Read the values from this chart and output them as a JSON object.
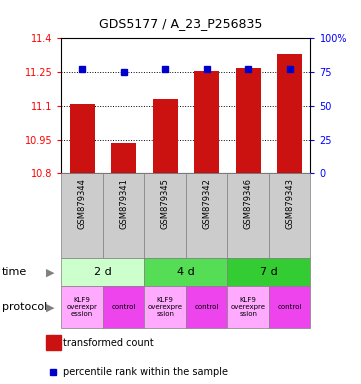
{
  "title": "GDS5177 / A_23_P256835",
  "samples": [
    "GSM879344",
    "GSM879341",
    "GSM879345",
    "GSM879342",
    "GSM879346",
    "GSM879343"
  ],
  "bar_values": [
    11.11,
    10.935,
    11.13,
    11.255,
    11.27,
    11.33
  ],
  "dot_values": [
    77,
    75,
    77,
    77,
    77,
    77
  ],
  "ymin": 10.8,
  "ymax": 11.4,
  "y2min": 0,
  "y2max": 100,
  "yticks": [
    10.8,
    10.95,
    11.1,
    11.25,
    11.4
  ],
  "y2ticks": [
    0,
    25,
    50,
    75,
    100
  ],
  "bar_color": "#cc1111",
  "dot_color": "#0000cc",
  "time_groups": [
    {
      "label": "2 d",
      "color": "#ccffcc",
      "start": 0,
      "end": 1
    },
    {
      "label": "4 d",
      "color": "#55dd55",
      "start": 2,
      "end": 3
    },
    {
      "label": "7 d",
      "color": "#33cc33",
      "start": 4,
      "end": 5
    }
  ],
  "protocol_groups": [
    {
      "label": "KLF9\noverexpr\nession",
      "color": "#ffaaff",
      "col": 0
    },
    {
      "label": "control",
      "color": "#ee44ee",
      "col": 1
    },
    {
      "label": "KLF9\noverexpre\nssion",
      "color": "#ffaaff",
      "col": 2
    },
    {
      "label": "control",
      "color": "#ee44ee",
      "col": 3
    },
    {
      "label": "KLF9\noverexpre\nssion",
      "color": "#ffaaff",
      "col": 4
    },
    {
      "label": "control",
      "color": "#ee44ee",
      "col": 5
    }
  ],
  "sample_bg_color": "#cccccc",
  "legend_bar_label": "transformed count",
  "legend_dot_label": "percentile rank within the sample",
  "time_label": "time",
  "protocol_label": "protocol"
}
